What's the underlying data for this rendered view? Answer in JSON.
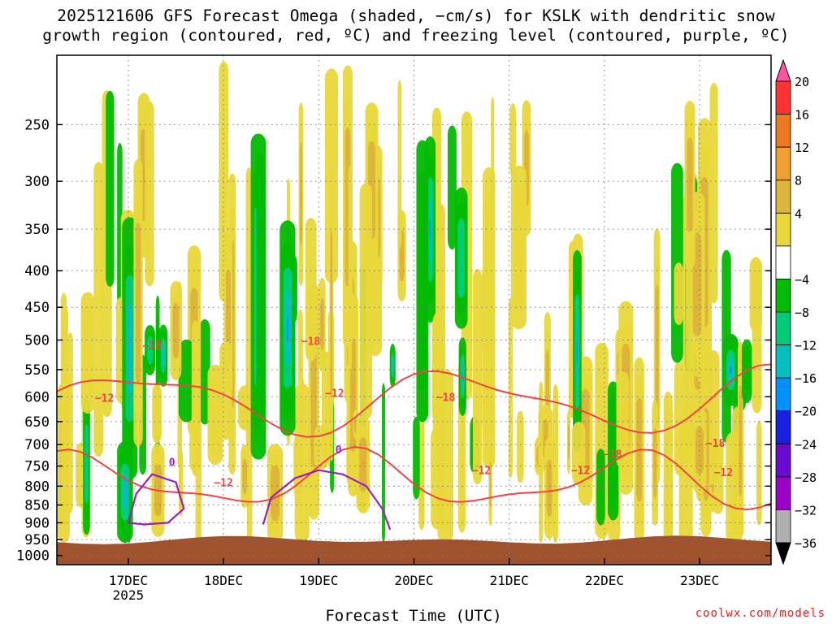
{
  "chart_data": {
    "type": "heatmap",
    "title_line1": "2025121606 GFS Forecast Omega (shaded, −cm/s) for KSLK with dendritic snow",
    "title_line2": "growth region (contoured, red, ºC) and freezing level (contoured, purple, ºC)",
    "xlabel": "Forecast Time (UTC)",
    "ylabel": "",
    "credit": "coolwx.com/models",
    "x_ticks": [
      {
        "label": "17DEC",
        "sub": "2025",
        "hour": 18
      },
      {
        "label": "18DEC",
        "sub": "",
        "hour": 42
      },
      {
        "label": "19DEC",
        "sub": "",
        "hour": 66
      },
      {
        "label": "20DEC",
        "sub": "",
        "hour": 90
      },
      {
        "label": "21DEC",
        "sub": "",
        "hour": 114
      },
      {
        "label": "22DEC",
        "sub": "",
        "hour": 138
      },
      {
        "label": "23DEC",
        "sub": "",
        "hour": 162
      }
    ],
    "xlim": [
      0,
      180
    ],
    "y_ticks": [
      "250",
      "300",
      "350",
      "400",
      "450",
      "500",
      "550",
      "600",
      "650",
      "700",
      "750",
      "800",
      "850",
      "900",
      "950",
      "1000"
    ],
    "ylim": [
      200,
      1030
    ],
    "y_scale": "log-pressure",
    "colorbar": {
      "labels": [
        "20",
        "16",
        "12",
        "8",
        "4",
        "−4",
        "−8",
        "−12",
        "−16",
        "−20",
        "−24",
        "−28",
        "−32",
        "−36"
      ],
      "colors": [
        "#ff55a0",
        "#ff3333",
        "#f07820",
        "#f0a030",
        "#ddb53a",
        "#e8d83a",
        "#ffffff",
        "#00bb00",
        "#00cc77",
        "#00c0c0",
        "#0090ff",
        "#1520e0",
        "#6a0ad0",
        "#9a00c8",
        "#b0b0b0",
        "#000000"
      ]
    },
    "contour_labels": {
      "red": [
        "−18",
        "−18",
        "−12",
        "−12",
        "−12",
        "−18",
        "−12",
        "−18",
        "−12",
        "−18",
        "−12"
      ],
      "purple": [
        "0",
        "0"
      ]
    },
    "terrain_color": "#a0522d",
    "red_contour_color": "#ee4444",
    "purple_contour_color": "#9b1fbf"
  }
}
